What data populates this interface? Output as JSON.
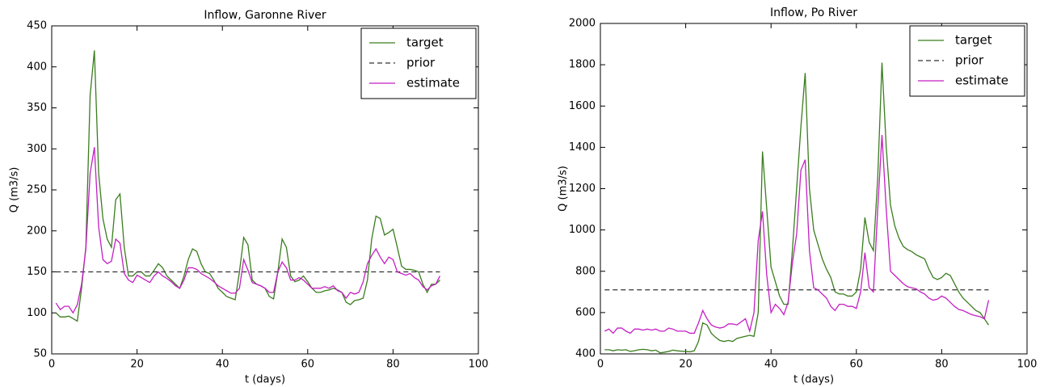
{
  "chart_data": [
    {
      "type": "line",
      "title": "Inflow, Garonne River",
      "xlabel": "t (days)",
      "ylabel": "Q (m3/s)",
      "xlim": [
        0,
        100
      ],
      "xticks": [
        0,
        20,
        40,
        60,
        80,
        100
      ],
      "ylim": [
        50,
        450
      ],
      "yticks": [
        50,
        100,
        150,
        200,
        250,
        300,
        350,
        400,
        450
      ],
      "legend": "upper right",
      "grid": false,
      "x": [
        1,
        2,
        3,
        4,
        5,
        6,
        7,
        8,
        9,
        10,
        11,
        12,
        13,
        14,
        15,
        16,
        17,
        18,
        19,
        20,
        21,
        22,
        23,
        24,
        25,
        26,
        27,
        28,
        29,
        30,
        31,
        32,
        33,
        34,
        35,
        36,
        37,
        38,
        39,
        40,
        41,
        42,
        43,
        44,
        45,
        46,
        47,
        48,
        49,
        50,
        51,
        52,
        53,
        54,
        55,
        56,
        57,
        58,
        59,
        60,
        61,
        62,
        63,
        64,
        65,
        66,
        67,
        68,
        69,
        70,
        71,
        72,
        73,
        74,
        75,
        76,
        77,
        78,
        79,
        80,
        81,
        82,
        83,
        84,
        85,
        86,
        87,
        88,
        89,
        90,
        91
      ],
      "series": [
        {
          "name": "target",
          "color": "#3a7d1e",
          "linestyle": "solid",
          "values": [
            100,
            95,
            95,
            96,
            93,
            90,
            130,
            180,
            365,
            420,
            270,
            215,
            190,
            180,
            238,
            245,
            180,
            145,
            145,
            150,
            150,
            145,
            145,
            152,
            160,
            155,
            145,
            140,
            135,
            130,
            145,
            165,
            178,
            175,
            160,
            150,
            148,
            140,
            130,
            125,
            120,
            118,
            116,
            150,
            192,
            183,
            140,
            135,
            133,
            130,
            120,
            117,
            150,
            190,
            180,
            145,
            138,
            140,
            145,
            138,
            130,
            125,
            125,
            127,
            128,
            130,
            128,
            125,
            113,
            110,
            115,
            116,
            118,
            140,
            190,
            218,
            215,
            195,
            198,
            202,
            180,
            157,
            153,
            153,
            152,
            150,
            135,
            125,
            135,
            135,
            140
          ]
        },
        {
          "name": "prior",
          "color": "#333333",
          "linestyle": "dashed",
          "x": [
            1,
            91
          ],
          "values": [
            150,
            150
          ]
        },
        {
          "name": "estimate",
          "color": "#c41fc4",
          "linestyle": "solid",
          "values": [
            112,
            104,
            108,
            108,
            100,
            110,
            135,
            178,
            270,
            302,
            205,
            165,
            160,
            163,
            190,
            185,
            148,
            140,
            137,
            146,
            143,
            140,
            137,
            145,
            150,
            145,
            142,
            138,
            133,
            130,
            140,
            155,
            155,
            153,
            148,
            145,
            142,
            138,
            133,
            130,
            127,
            124,
            124,
            130,
            165,
            152,
            137,
            135,
            133,
            130,
            125,
            125,
            150,
            162,
            155,
            140,
            140,
            143,
            140,
            135,
            130,
            130,
            130,
            132,
            130,
            133,
            127,
            125,
            118,
            125,
            123,
            125,
            138,
            160,
            170,
            178,
            168,
            160,
            168,
            165,
            150,
            148,
            146,
            148,
            143,
            140,
            132,
            128,
            133,
            135,
            145
          ]
        }
      ]
    },
    {
      "type": "line",
      "title": "Inflow, Po River",
      "xlabel": "t (days)",
      "ylabel": "Q (m3/s)",
      "xlim": [
        0,
        100
      ],
      "xticks": [
        0,
        20,
        40,
        60,
        80,
        100
      ],
      "ylim": [
        400,
        2000
      ],
      "yticks": [
        400,
        600,
        800,
        1000,
        1200,
        1400,
        1600,
        1800,
        2000
      ],
      "legend": "upper right",
      "grid": false,
      "x": [
        1,
        2,
        3,
        4,
        5,
        6,
        7,
        8,
        9,
        10,
        11,
        12,
        13,
        14,
        15,
        16,
        17,
        18,
        19,
        20,
        21,
        22,
        23,
        24,
        25,
        26,
        27,
        28,
        29,
        30,
        31,
        32,
        33,
        34,
        35,
        36,
        37,
        38,
        39,
        40,
        41,
        42,
        43,
        44,
        45,
        46,
        47,
        48,
        49,
        50,
        51,
        52,
        53,
        54,
        55,
        56,
        57,
        58,
        59,
        60,
        61,
        62,
        63,
        64,
        65,
        66,
        67,
        68,
        69,
        70,
        71,
        72,
        73,
        74,
        75,
        76,
        77,
        78,
        79,
        80,
        81,
        82,
        83,
        84,
        85,
        86,
        87,
        88,
        89,
        90,
        91
      ],
      "series": [
        {
          "name": "target",
          "color": "#3a7d1e",
          "linestyle": "solid",
          "values": [
            420,
            420,
            415,
            420,
            418,
            420,
            412,
            415,
            420,
            422,
            420,
            415,
            418,
            405,
            408,
            412,
            418,
            415,
            413,
            412,
            410,
            415,
            460,
            550,
            540,
            500,
            480,
            465,
            460,
            465,
            460,
            475,
            480,
            485,
            490,
            485,
            600,
            1380,
            1100,
            820,
            750,
            680,
            640,
            640,
            900,
            1200,
            1500,
            1760,
            1200,
            1000,
            930,
            860,
            810,
            770,
            700,
            690,
            690,
            680,
            680,
            700,
            810,
            1060,
            940,
            900,
            1250,
            1810,
            1400,
            1120,
            1020,
            960,
            920,
            905,
            895,
            880,
            870,
            860,
            810,
            770,
            760,
            770,
            790,
            780,
            740,
            700,
            670,
            650,
            630,
            610,
            600,
            570,
            540
          ]
        },
        {
          "name": "prior",
          "color": "#333333",
          "linestyle": "dashed",
          "x": [
            1,
            91
          ],
          "values": [
            710,
            710
          ]
        },
        {
          "name": "estimate",
          "color": "#c41fc4",
          "linestyle": "solid",
          "values": [
            510,
            520,
            500,
            525,
            525,
            510,
            500,
            520,
            520,
            515,
            520,
            515,
            520,
            510,
            510,
            525,
            520,
            510,
            510,
            510,
            500,
            500,
            550,
            610,
            570,
            540,
            530,
            525,
            530,
            545,
            545,
            540,
            555,
            570,
            510,
            600,
            950,
            1090,
            780,
            600,
            640,
            620,
            590,
            650,
            840,
            980,
            1290,
            1340,
            900,
            720,
            710,
            690,
            670,
            630,
            610,
            640,
            640,
            630,
            630,
            620,
            700,
            890,
            720,
            700,
            1100,
            1460,
            1100,
            800,
            780,
            760,
            740,
            725,
            720,
            715,
            700,
            690,
            670,
            660,
            665,
            680,
            670,
            650,
            630,
            615,
            610,
            600,
            590,
            585,
            580,
            570,
            660
          ]
        }
      ]
    }
  ]
}
